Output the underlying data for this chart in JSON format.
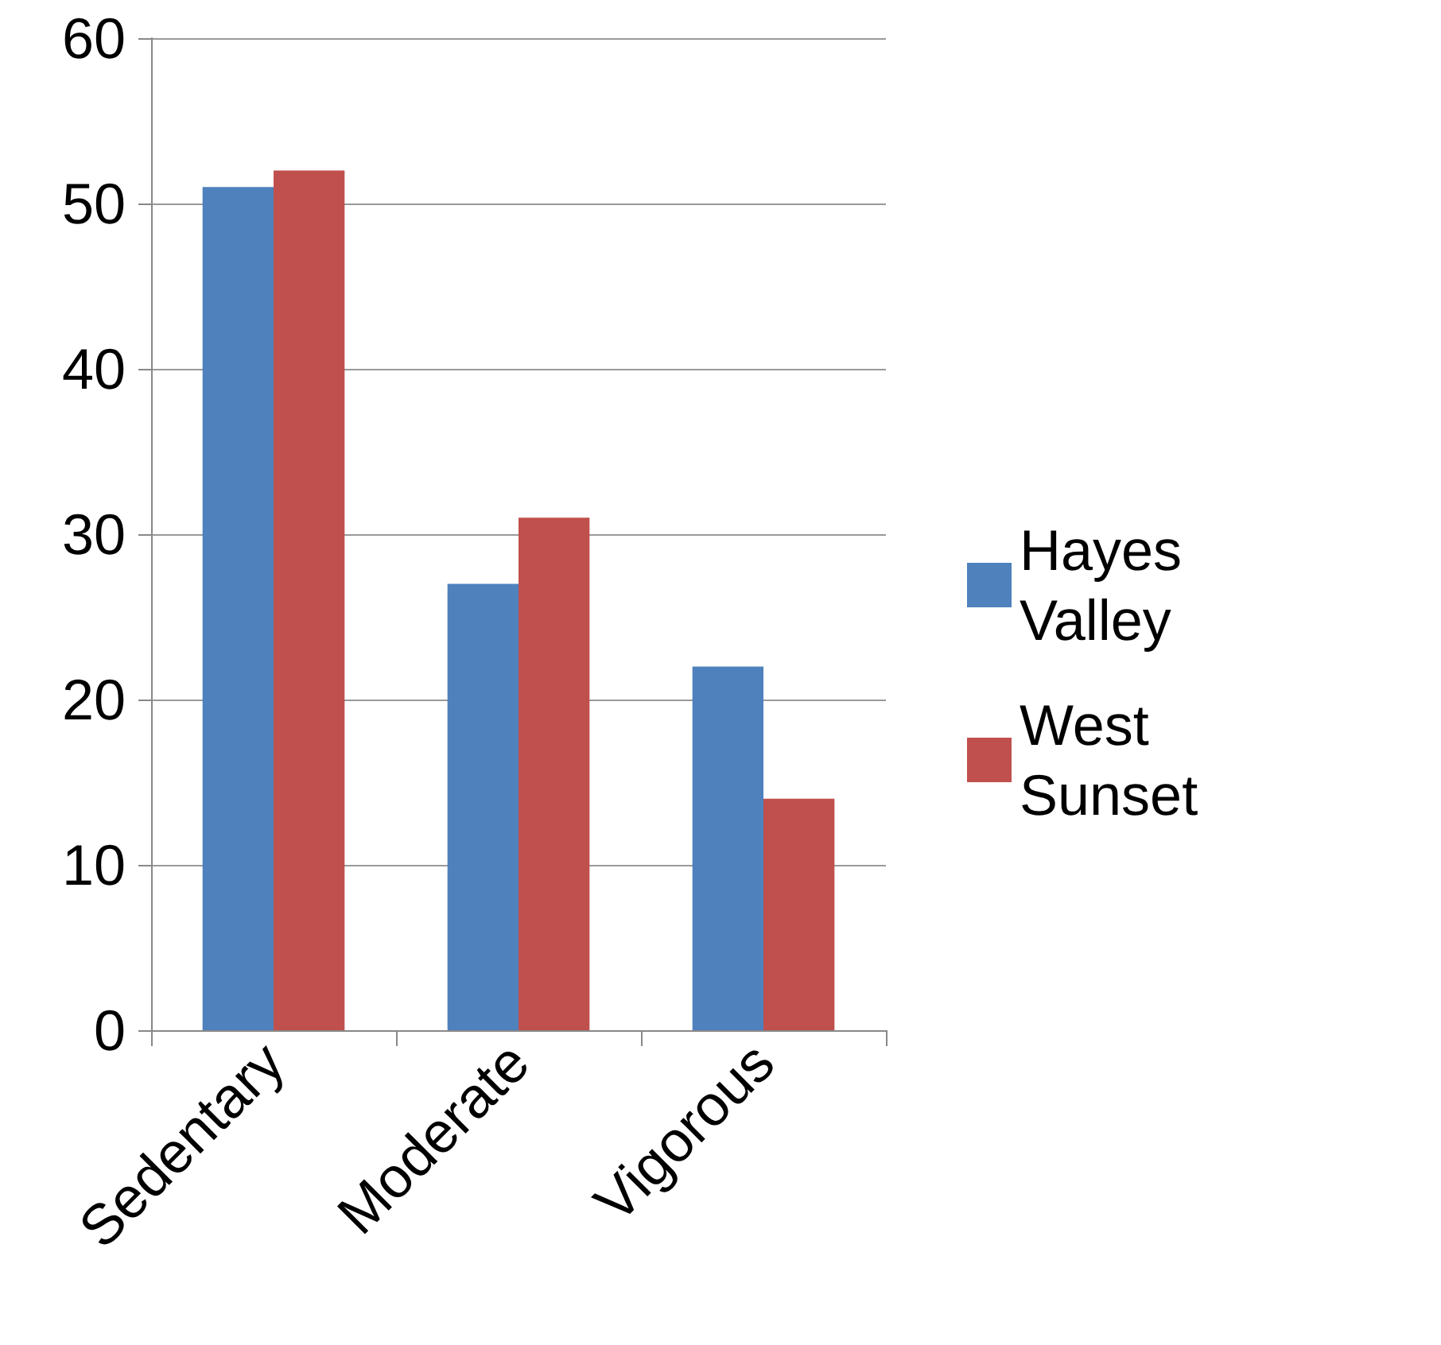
{
  "chart_data": {
    "type": "bar",
    "categories": [
      "Sedentary",
      "Moderate",
      "Vigorous"
    ],
    "series": [
      {
        "name": "Hayes Valley",
        "color": "#4f81bd",
        "values": [
          51,
          27,
          22
        ]
      },
      {
        "name": "West Sunset",
        "color": "#c0504d",
        "values": [
          52,
          31,
          14
        ]
      }
    ],
    "ylim": [
      0,
      60
    ],
    "yticks": [
      0,
      10,
      20,
      30,
      40,
      50,
      60
    ],
    "grid": "y",
    "legend": "right"
  }
}
